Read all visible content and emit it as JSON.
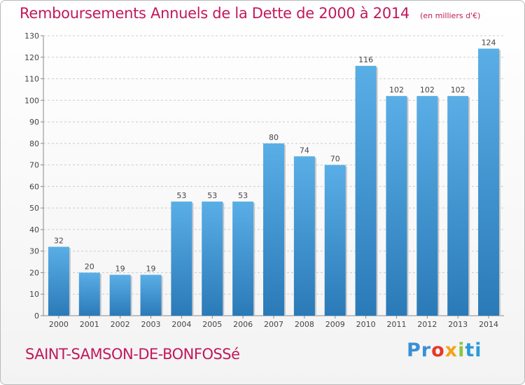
{
  "header": {
    "title": "Remboursements Annuels de la Dette de 2000 à 2014",
    "subtitle": "(en milliers d'€)"
  },
  "footer": {
    "commune": "SAINT-SAMSON-DE-BONFOSSé",
    "logo_letters": [
      "Pr",
      "o",
      "x",
      "i",
      "ti"
    ],
    "logo_colors": [
      "#3a8fd6",
      "#e5392a",
      "#f6a21b",
      "#8cc63f",
      "#2a9bd6"
    ]
  },
  "chart_data": {
    "type": "bar",
    "title": "Remboursements Annuels de la Dette de 2000 à 2014",
    "categories": [
      "2000",
      "2001",
      "2002",
      "2003",
      "2004",
      "2005",
      "2006",
      "2007",
      "2008",
      "2009",
      "2010",
      "2011",
      "2012",
      "2013",
      "2014"
    ],
    "values": [
      32,
      20,
      19,
      19,
      53,
      53,
      53,
      80,
      74,
      70,
      116,
      102,
      102,
      102,
      124
    ],
    "ylim": [
      0,
      130
    ],
    "yticks": [
      0,
      10,
      20,
      30,
      40,
      50,
      60,
      70,
      80,
      90,
      100,
      110,
      120,
      130
    ],
    "grid": true,
    "bar_color_top": "#5aaee6",
    "bar_color_bottom": "#2a7ab8"
  }
}
